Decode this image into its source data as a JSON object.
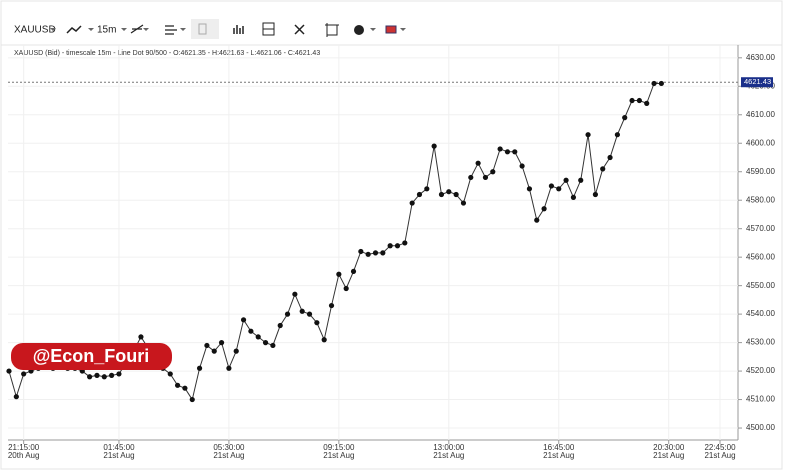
{
  "toolbar": {
    "symbol": "XAUUSD",
    "timeframe": "15m"
  },
  "chart_data": {
    "type": "line",
    "info": "XAUUSD (Bid) - timescale 15m - Line Dot  90/500 - O:4621.35 - H:4621.63 - L:4621.06 - C:4621.43",
    "watermark": "@Econ_Fouri",
    "categories": [
      null,
      null,
      "21:15:00",
      null,
      null,
      null,
      null,
      null,
      null,
      null,
      null,
      null,
      null,
      null,
      null,
      "01:45:00",
      null,
      null,
      null,
      null,
      null,
      null,
      null,
      null,
      null,
      null,
      null,
      null,
      null,
      null,
      "05:30:00",
      null,
      null,
      null,
      null,
      null,
      null,
      null,
      null,
      null,
      null,
      null,
      null,
      null,
      null,
      "09:15:00",
      null,
      null,
      null,
      null,
      null,
      null,
      null,
      null,
      null,
      null,
      null,
      null,
      null,
      null,
      "13:00:00",
      null,
      null,
      null,
      null,
      null,
      null,
      null,
      null,
      null,
      null,
      null,
      null,
      null,
      null,
      "16:45:00",
      null,
      null,
      null,
      null,
      null,
      null,
      null,
      null,
      null,
      null,
      null,
      null,
      null,
      null,
      "20:30:00",
      null,
      null,
      null,
      null,
      null,
      null,
      "22:45:00"
    ],
    "category_dates": [
      null,
      null,
      "20th Aug",
      null,
      null,
      null,
      null,
      null,
      null,
      null,
      null,
      null,
      null,
      null,
      null,
      "21st Aug",
      null,
      null,
      null,
      null,
      null,
      null,
      null,
      null,
      null,
      null,
      null,
      null,
      null,
      null,
      "21st Aug",
      null,
      null,
      null,
      null,
      null,
      null,
      null,
      null,
      null,
      null,
      null,
      null,
      null,
      null,
      "21st Aug",
      null,
      null,
      null,
      null,
      null,
      null,
      null,
      null,
      null,
      null,
      null,
      null,
      null,
      null,
      "21st Aug",
      null,
      null,
      null,
      null,
      null,
      null,
      null,
      null,
      null,
      null,
      null,
      null,
      null,
      null,
      "21st Aug",
      null,
      null,
      null,
      null,
      null,
      null,
      null,
      null,
      null,
      null,
      null,
      null,
      null,
      null,
      "21st Aug",
      null,
      null,
      null,
      null,
      null,
      null,
      "21st Aug"
    ],
    "values": [
      4520,
      4511,
      4519,
      4520,
      4521,
      4522,
      4521,
      4522,
      4521,
      4521,
      4520,
      4518,
      4518.5,
      4518,
      4518.5,
      4519,
      4523,
      4527,
      4532,
      4528,
      4524,
      4521,
      4519,
      4515,
      4514,
      4510,
      4521,
      4529,
      4527,
      4530,
      4521,
      4527,
      4538,
      4534,
      4532,
      4530,
      4529,
      4536,
      4540,
      4547,
      4541,
      4540,
      4537,
      4531,
      4543,
      4554,
      4549,
      4555,
      4562,
      4561,
      4561.5,
      4561.5,
      4564,
      4564,
      4565,
      4579,
      4582,
      4584,
      4599,
      4582,
      4583,
      4582,
      4579,
      4588,
      4593,
      4588,
      4590,
      4598,
      4597,
      4597,
      4592,
      4584,
      4573,
      4577,
      4585,
      4584,
      4587,
      4581,
      4587,
      4603,
      4582,
      4591,
      4595,
      4603,
      4609,
      4615,
      4615,
      4614,
      4621,
      4621,
      null,
      null,
      null,
      null,
      null,
      null,
      null,
      null
    ],
    "color": "#333333",
    "last_price": 4621.43,
    "ylim": [
      4495.8,
      4634.5
    ],
    "yticks": [
      {
        "value": 4500,
        "label": "4500.00"
      },
      {
        "value": 4510,
        "label": "4510.00"
      },
      {
        "value": 4520,
        "label": "4520.00"
      },
      {
        "value": 4530,
        "label": "4530.00"
      },
      {
        "value": 4540,
        "label": "4540.00"
      },
      {
        "value": 4550,
        "label": "4550.00"
      },
      {
        "value": 4560,
        "label": "4560.00"
      },
      {
        "value": 4570,
        "label": "4570.00"
      },
      {
        "value": 4580,
        "label": "4580.00"
      },
      {
        "value": 4590,
        "label": "4590.00"
      },
      {
        "value": 4600,
        "label": "4600.00"
      },
      {
        "value": 4610,
        "label": "4610.00"
      },
      {
        "value": 4620,
        "label": "4620.00"
      },
      {
        "value": 4630,
        "label": "4630.00"
      }
    ],
    "grid": true
  }
}
